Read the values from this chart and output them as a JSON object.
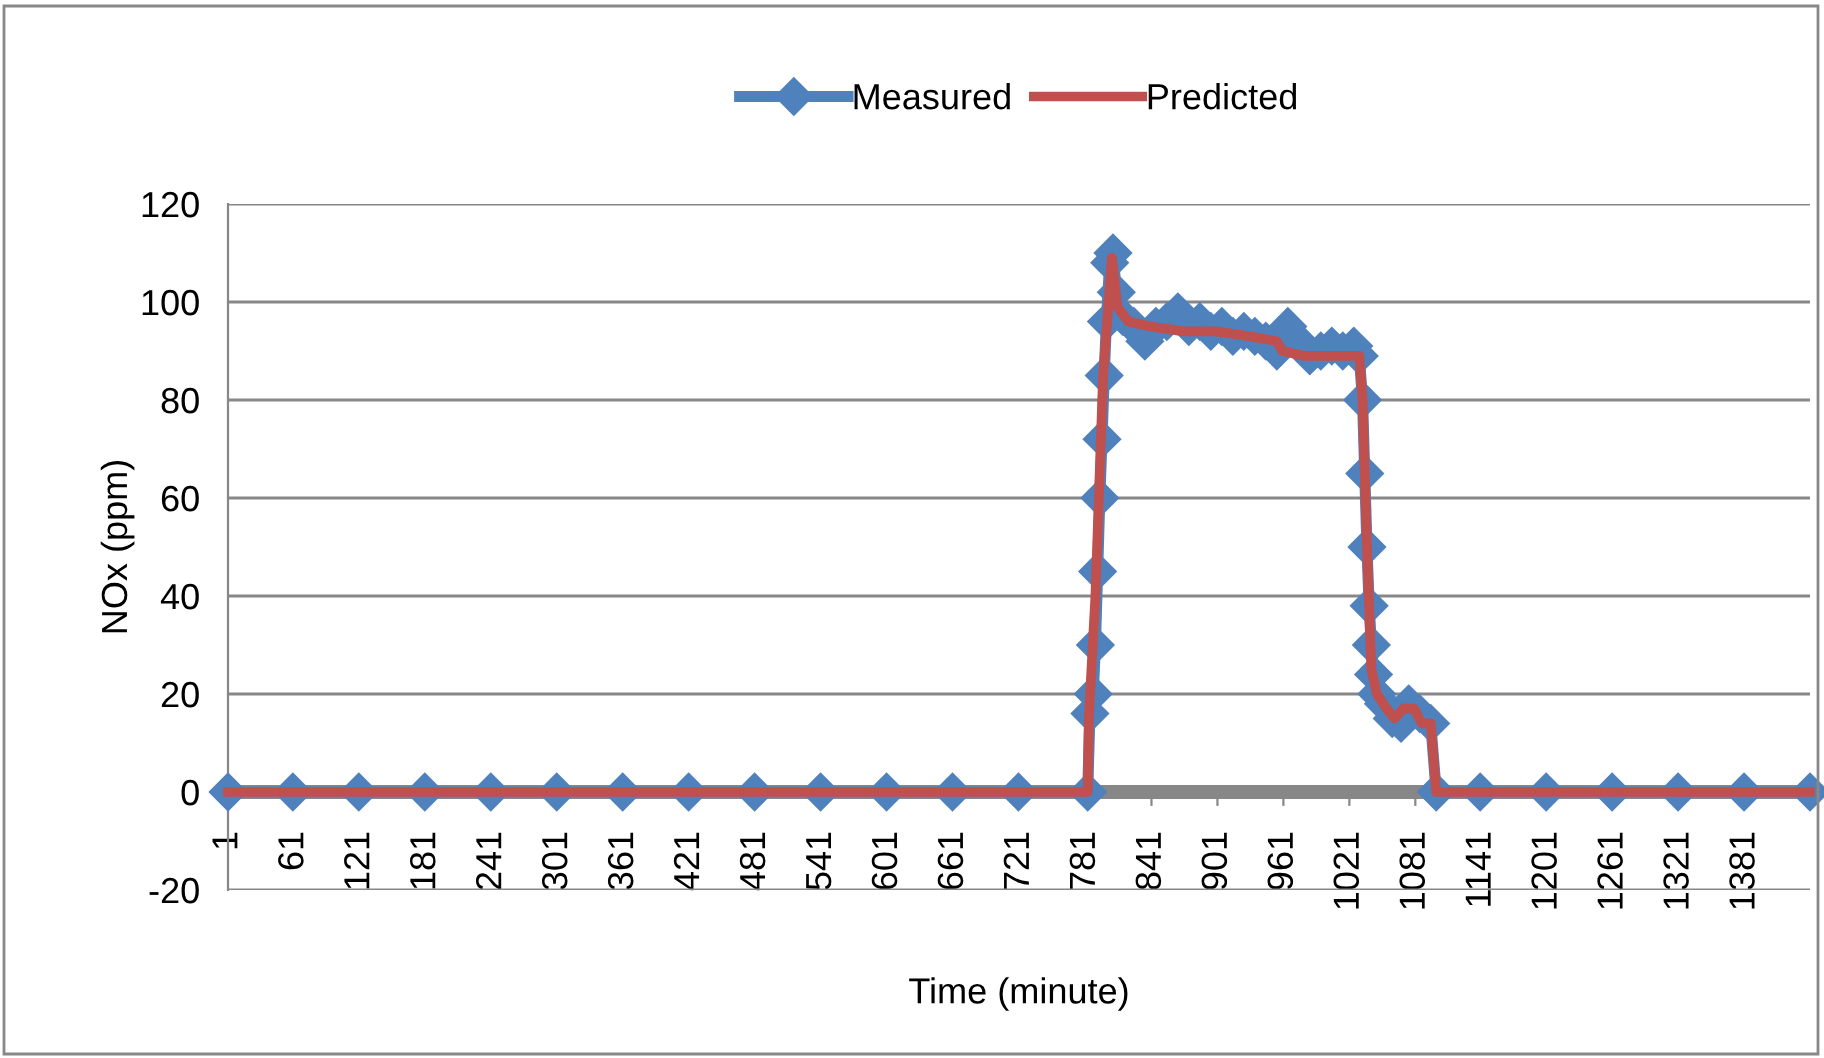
{
  "chart_data": {
    "type": "line",
    "xlabel": "Time (minute)",
    "ylabel": "NOx (ppm)",
    "xlim": [
      1,
      1440
    ],
    "xticks": [
      1,
      61,
      121,
      181,
      241,
      301,
      361,
      421,
      481,
      541,
      601,
      661,
      721,
      781,
      841,
      901,
      961,
      1021,
      1081,
      1141,
      1201,
      1261,
      1321,
      1381
    ],
    "ylim": [
      -20,
      120
    ],
    "yticks": [
      -20,
      0,
      20,
      40,
      60,
      80,
      100,
      120
    ],
    "grid": "y",
    "legend": "top",
    "series": [
      {
        "name": "Measured",
        "color": "#4f81bd",
        "marker": "diamond",
        "x": [
          1,
          60,
          120,
          180,
          240,
          300,
          360,
          420,
          480,
          540,
          600,
          660,
          720,
          783,
          785,
          788,
          790,
          792,
          794,
          796,
          798,
          800,
          803,
          806,
          809,
          815,
          825,
          835,
          845,
          855,
          865,
          875,
          885,
          895,
          905,
          915,
          925,
          935,
          945,
          955,
          965,
          975,
          985,
          995,
          1005,
          1015,
          1025,
          1030,
          1033,
          1035,
          1037,
          1039,
          1041,
          1043,
          1046,
          1052,
          1060,
          1068,
          1075,
          1085,
          1095,
          1100,
          1140,
          1200,
          1260,
          1320,
          1380,
          1440
        ],
        "values": [
          0,
          0,
          0,
          0,
          0,
          0,
          0,
          0,
          0,
          0,
          0,
          0,
          0,
          0,
          16,
          20,
          30,
          45,
          60,
          72,
          85,
          96,
          108,
          110,
          102,
          97,
          95,
          92,
          95,
          96,
          98,
          95,
          96,
          94,
          95,
          93,
          94,
          93,
          92,
          90,
          95,
          92,
          89,
          90,
          91,
          90,
          91,
          89,
          80,
          65,
          50,
          38,
          30,
          24,
          20,
          18,
          15,
          14,
          18,
          16,
          14,
          0,
          0,
          0,
          0,
          0,
          0,
          0
        ]
      },
      {
        "name": "Predicted",
        "color": "#c0504d",
        "marker": "none",
        "x": [
          1,
          783,
          784,
          790,
          797,
          805,
          810,
          820,
          840,
          870,
          900,
          930,
          955,
          960,
          980,
          1000,
          1030,
          1033,
          1037,
          1041,
          1046,
          1055,
          1062,
          1070,
          1080,
          1087,
          1095,
          1100,
          1440
        ],
        "values": [
          0,
          0,
          15,
          40,
          85,
          109,
          99,
          96,
          95,
          94,
          94,
          93,
          92,
          90,
          89,
          89,
          89,
          80,
          50,
          25,
          20,
          17,
          15,
          17,
          17,
          14,
          14,
          0,
          0
        ]
      }
    ]
  }
}
